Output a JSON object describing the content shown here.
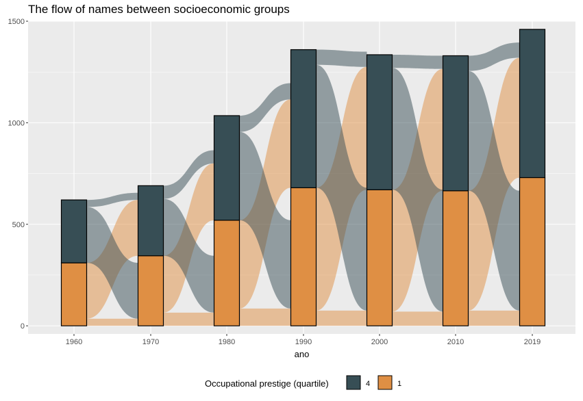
{
  "chart_data": {
    "type": "alluvial",
    "title": "The flow of names between socioeconomic groups",
    "xlabel": "ano",
    "ylabel": "",
    "x": [
      "1960",
      "1970",
      "1980",
      "1990",
      "2000",
      "2010",
      "2019"
    ],
    "ylim": [
      -40,
      1500
    ],
    "yticks": [
      0,
      500,
      1000,
      1500
    ],
    "series": [
      {
        "name": "1",
        "color": "#DF8F44",
        "values": [
          310,
          345,
          520,
          680,
          670,
          665,
          730
        ]
      },
      {
        "name": "4",
        "color": "#374E55",
        "values": [
          310,
          345,
          515,
          680,
          665,
          665,
          730
        ]
      }
    ],
    "flows": [
      {
        "from_group": "1",
        "to_group": "1",
        "color": "#DF8F44",
        "values": [
          35,
          65,
          85,
          75,
          70,
          75
        ]
      },
      {
        "from_group": "1",
        "to_group": "4",
        "color": "#DF8F44",
        "values": [
          275,
          280,
          435,
          605,
          600,
          590
        ]
      },
      {
        "from_group": "4",
        "to_group": "1",
        "color": "#374E55",
        "values": [
          275,
          280,
          435,
          605,
          600,
          590
        ]
      },
      {
        "from_group": "4",
        "to_group": "4",
        "color": "#374E55",
        "values": [
          35,
          65,
          80,
          75,
          65,
          75
        ]
      }
    ],
    "legend": {
      "title": "Occupational prestige (quartile)",
      "position": "bottom",
      "entries": [
        {
          "label": "4",
          "color": "#374E55"
        },
        {
          "label": "1",
          "color": "#DF8F44"
        }
      ]
    },
    "grid": true
  }
}
